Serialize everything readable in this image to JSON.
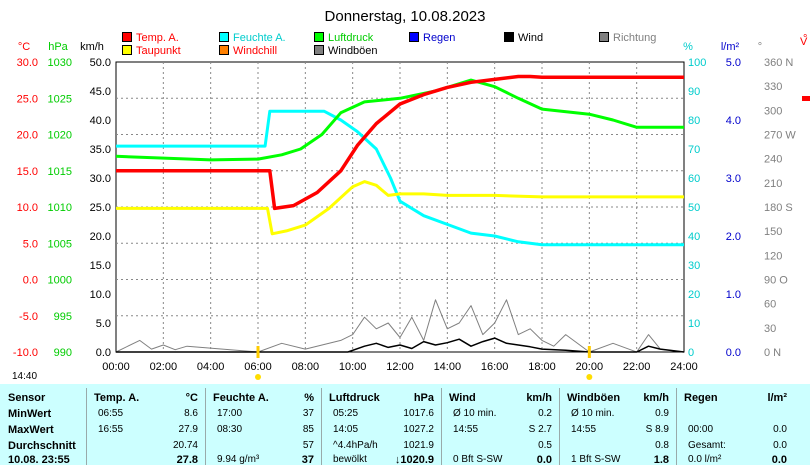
{
  "header": {
    "title": "Donnerstag, 10.08.2023"
  },
  "legend": [
    {
      "label": "Temp. A.",
      "color": "#ff0000",
      "text_color": "#ff0000"
    },
    {
      "label": "Taupunkt",
      "color": "#ffff00",
      "text_color": "#ff0000"
    },
    {
      "label": "Feuchte A.",
      "color": "#00ffff",
      "text_color": "#00cccc"
    },
    {
      "label": "Windchill",
      "color": "#ff8000",
      "text_color": "#ff0000"
    },
    {
      "label": "Luftdruck",
      "color": "#00ff00",
      "text_color": "#00cc00"
    },
    {
      "label": "Windböen",
      "color": "#808080",
      "text_color": "#000000"
    },
    {
      "label": "Regen",
      "color": "#0000ff",
      "text_color": "#0000cc"
    },
    {
      "label": "Wind",
      "color": "#000000",
      "text_color": "#000000"
    },
    {
      "label": "Richtung",
      "color": "#808080",
      "text_color": "#808080"
    }
  ],
  "axes": {
    "temp_unit": "°C",
    "pressure_unit": "hPa",
    "wind_unit": "km/h",
    "humidity_unit": "%",
    "rain_unit": "l/m²",
    "dir_unit": "°",
    "temp_ticks": [
      "30.0",
      "25.0",
      "20.0",
      "15.0",
      "10.0",
      "5.0",
      "0.0",
      "-5.0",
      "-10.0"
    ],
    "pressure_ticks": [
      "1030",
      "1025",
      "1020",
      "1015",
      "1010",
      "1005",
      "1000",
      "995",
      "990"
    ],
    "wind_ticks": [
      "50.0",
      "45.0",
      "40.0",
      "35.0",
      "30.0",
      "25.0",
      "20.0",
      "15.0",
      "10.0",
      "5.0",
      "0.0"
    ],
    "humidity_ticks": [
      "100",
      "90",
      "80",
      "70",
      "60",
      "50",
      "40",
      "30",
      "20",
      "10",
      "0"
    ],
    "rain_ticks": [
      "5.0",
      "4.0",
      "3.0",
      "2.0",
      "1.0",
      "0.0"
    ],
    "dir_ticks": [
      "360 N",
      "330",
      "300",
      "270 W",
      "240",
      "210",
      "180 S",
      "150",
      "120",
      "90 O",
      "60",
      "30",
      "0 N"
    ],
    "time_ticks": [
      "00:00",
      "02:00",
      "04:00",
      "06:00",
      "08:00",
      "10:00",
      "12:00",
      "14:00",
      "16:00",
      "18:00",
      "20:00",
      "22:00",
      "24:00"
    ],
    "sunrise": "06:00",
    "sunset": "20:00",
    "clipped_right_units": [
      "°"
    ],
    "clipped_right_letter": "V"
  },
  "corner_time": "14:40",
  "chart_data": {
    "type": "line",
    "x_unit": "hours",
    "xlim": [
      0,
      24
    ],
    "series": [
      {
        "name": "Temp. A.",
        "axis": "temp",
        "ylim": [
          -10,
          30
        ],
        "x": [
          0,
          6.5,
          6.7,
          7.5,
          8.5,
          9.5,
          10.2,
          11,
          12,
          13,
          14,
          15,
          16,
          17,
          17.5,
          18,
          20,
          22,
          24
        ],
        "y": [
          15,
          15,
          9.8,
          10.2,
          12,
          15,
          18.5,
          21.5,
          24.2,
          25.5,
          26.5,
          27.2,
          27.6,
          28,
          28,
          27.9,
          27.9,
          27.9,
          27.9
        ]
      },
      {
        "name": "Taupunkt",
        "axis": "temp",
        "ylim": [
          -10,
          30
        ],
        "x": [
          0,
          6.4,
          6.6,
          7.2,
          8,
          9,
          10,
          10.5,
          11,
          11.5,
          12,
          13,
          14,
          15,
          16,
          18,
          20,
          24
        ],
        "y": [
          9.8,
          9.8,
          6.3,
          6.7,
          7.5,
          9.8,
          12.8,
          13.5,
          13,
          11.6,
          11.8,
          11.8,
          11.6,
          11.6,
          11.6,
          11.4,
          11.4,
          11.4
        ]
      },
      {
        "name": "Feuchte A.",
        "axis": "humidity",
        "ylim": [
          0,
          100
        ],
        "x": [
          0,
          6.3,
          6.5,
          8,
          8.8,
          9.5,
          10.2,
          11,
          11.6,
          12,
          13,
          14,
          15,
          16,
          17,
          18,
          20,
          24
        ],
        "y": [
          71,
          71,
          83,
          83,
          83,
          80,
          76,
          70,
          60,
          52,
          47,
          44,
          41,
          40,
          38,
          37,
          37,
          37
        ]
      },
      {
        "name": "Luftdruck",
        "axis": "pressure",
        "ylim": [
          990,
          1030
        ],
        "x": [
          0,
          4,
          6,
          7,
          7.8,
          8.7,
          9.5,
          10.5,
          12,
          13.5,
          15,
          16,
          17,
          18,
          20,
          21,
          22,
          24
        ],
        "y": [
          1017,
          1016.5,
          1016.6,
          1017.2,
          1018,
          1020,
          1023,
          1024.5,
          1025,
          1026,
          1027.5,
          1026.6,
          1025,
          1023.5,
          1022.8,
          1022,
          1021,
          1021
        ]
      },
      {
        "name": "Wind",
        "axis": "wind",
        "ylim": [
          0,
          50
        ],
        "x": [
          0,
          9.8,
          10.5,
          11,
          11.5,
          12,
          12.5,
          13,
          13.5,
          14,
          14.5,
          15,
          15.5,
          16,
          16.5,
          17,
          17.5,
          18,
          19,
          20,
          21,
          22,
          22.5,
          23,
          24
        ],
        "y": [
          0,
          0,
          1,
          1.5,
          0.8,
          1.2,
          0.6,
          1.8,
          1.2,
          1.6,
          2.2,
          1,
          1.8,
          2.4,
          1.5,
          1.2,
          0.9,
          0.5,
          0.3,
          0,
          0,
          0,
          1,
          0.5,
          0
        ]
      },
      {
        "name": "Windböen",
        "axis": "wind",
        "ylim": [
          0,
          50
        ],
        "x": [
          0,
          1,
          1.5,
          2,
          2.5,
          3,
          6,
          7,
          8,
          9.5,
          10,
          10.5,
          11,
          11.5,
          12,
          12.5,
          13,
          13.5,
          14,
          14.5,
          15,
          15.5,
          16,
          16.5,
          17,
          17.5,
          18,
          18.5,
          19,
          20,
          21,
          22,
          22.5,
          23,
          24
        ],
        "y": [
          0,
          2,
          0.5,
          1.2,
          0.4,
          1,
          0,
          1.5,
          0.5,
          2,
          3,
          6,
          4,
          5,
          2.5,
          6,
          2,
          9,
          4,
          5,
          8,
          3,
          5,
          9,
          3,
          4,
          2,
          1,
          3,
          0,
          1.5,
          0,
          3,
          0.5,
          0
        ]
      }
    ]
  },
  "table": {
    "sensor": {
      "header": "Sensor",
      "rows": [
        "MinWert",
        "MaxWert",
        "Durchschnitt",
        "10.08. 23:55"
      ]
    },
    "columns": [
      {
        "name": "Temp. A.",
        "unit": "°C",
        "rows": [
          [
            "06:55",
            "8.6"
          ],
          [
            "16:55",
            "27.9"
          ],
          [
            "",
            "20.74"
          ],
          [
            "",
            "27.8"
          ]
        ]
      },
      {
        "name": "Feuchte A.",
        "unit": "%",
        "rows": [
          [
            "17:00",
            "37"
          ],
          [
            "08:30",
            "85"
          ],
          [
            "",
            "57"
          ],
          [
            "9.94 g/m³",
            "37"
          ]
        ]
      },
      {
        "name": "Luftdruck",
        "unit": "hPa",
        "rows": [
          [
            "05:25",
            "1017.6"
          ],
          [
            "14:05",
            "1027.2"
          ],
          [
            "^4.4hPa/h",
            "1021.9"
          ],
          [
            "bewölkt",
            "↓1020.9"
          ]
        ]
      },
      {
        "name": "Wind",
        "unit": "km/h",
        "rows": [
          [
            "Ø 10 min.",
            "0.2"
          ],
          [
            "14:55",
            "S 2.7"
          ],
          [
            "",
            "0.5"
          ],
          [
            "0 Bft S-SW",
            "0.0"
          ]
        ]
      },
      {
        "name": "Windböen",
        "unit": "km/h",
        "rows": [
          [
            "Ø 10 min.",
            "0.9"
          ],
          [
            "14:55",
            "S 8.9"
          ],
          [
            "",
            "0.8"
          ],
          [
            "1 Bft S-SW",
            "1.8"
          ]
        ]
      },
      {
        "name": "Regen",
        "unit": "l/m²",
        "rows": [
          [
            "",
            ""
          ],
          [
            "00:00",
            "0.0"
          ],
          [
            "Gesamt:",
            "0.0"
          ],
          [
            "0.0 l/m²",
            "0.0"
          ]
        ]
      }
    ]
  }
}
